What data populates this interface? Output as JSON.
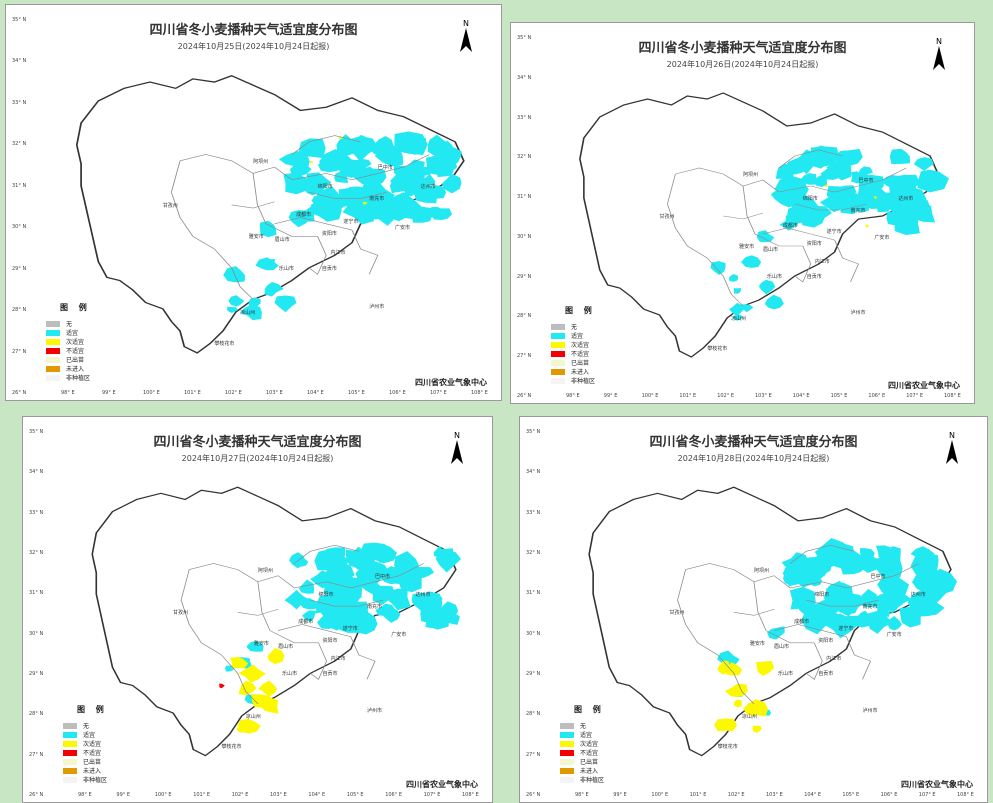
{
  "map_title": "四川省冬小麦播种天气适宜度分布图",
  "publisher": "四川省农业气象中心",
  "north_label": "N",
  "legend_title": "图 例",
  "legend": [
    {
      "label": "无",
      "color": "#bdbdbd"
    },
    {
      "label": "适宜",
      "color": "#22e8f2"
    },
    {
      "label": "次适宜",
      "color": "#fcf800"
    },
    {
      "label": "不适宜",
      "color": "#f40000"
    },
    {
      "label": "已出苗",
      "color": "#f4f7cc"
    },
    {
      "label": "未进入",
      "color": "#e09a00"
    },
    {
      "label": "非种植区",
      "color": "#f4f4f4"
    }
  ],
  "lat_labels": [
    "35° N",
    "34° N",
    "33° N",
    "32° N",
    "31° N",
    "30° N",
    "29° N",
    "28° N",
    "27° N",
    "26° N"
  ],
  "lon_labels": [
    "98° E",
    "99° E",
    "100° E",
    "101° E",
    "102° E",
    "103° E",
    "104° E",
    "105° E",
    "106° E",
    "107° E",
    "108° E"
  ],
  "regions": [
    "阿坝州",
    "甘孜州",
    "绵阳市",
    "南充市",
    "达州市",
    "成都市",
    "雅安市",
    "眉山市",
    "遂宁市",
    "内江市",
    "乐山市",
    "自贡市",
    "泸州市",
    "凉山州",
    "攀枝花市",
    "广安市",
    "资阳市",
    "巴中市"
  ],
  "panels": [
    {
      "subtitle": "2024年10月25日(2024年10月24日起报)"
    },
    {
      "subtitle": "2024年10月26日(2024年10月24日起报)"
    },
    {
      "subtitle": "2024年10月27日(2024年10月24日起报)"
    },
    {
      "subtitle": "2024年10月28日(2024年10月24日起报)"
    }
  ]
}
